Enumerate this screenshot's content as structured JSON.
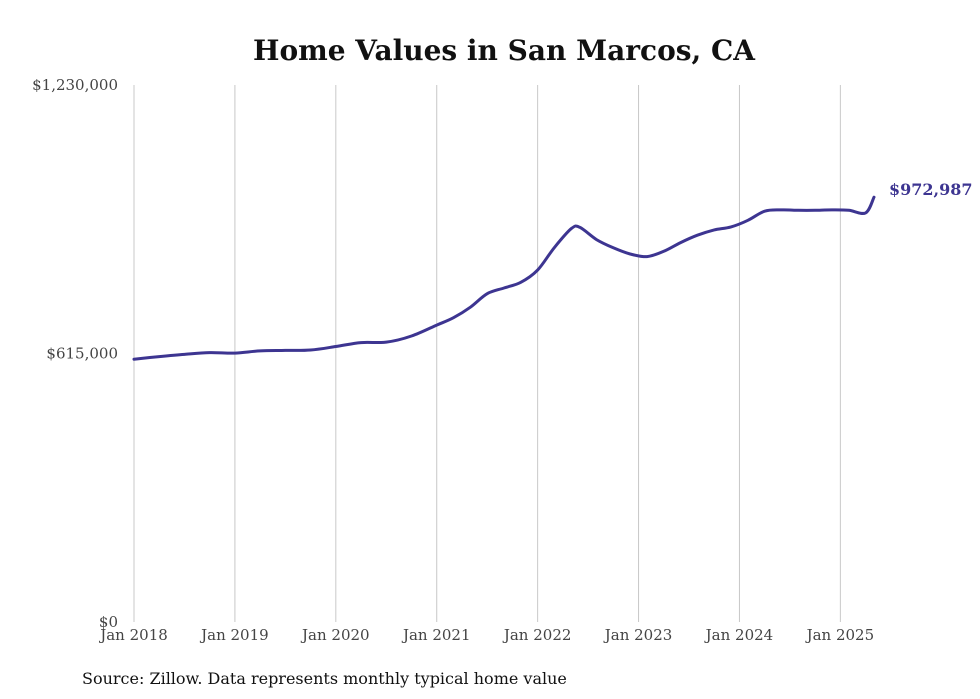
{
  "chart_data": {
    "type": "line",
    "title": "Home Values in San Marcos, CA",
    "xlabel": "",
    "ylabel": "",
    "ylim": [
      0,
      1230000
    ],
    "xlim": [
      "2018-01",
      "2025-05"
    ],
    "yticks": [
      {
        "value": 0,
        "label": "$0"
      },
      {
        "value": 615000,
        "label": "$615,000"
      },
      {
        "value": 1230000,
        "label": "$1,230,000"
      }
    ],
    "xticks": [
      {
        "date": "2018-01",
        "label": "Jan 2018"
      },
      {
        "date": "2019-01",
        "label": "Jan 2019"
      },
      {
        "date": "2020-01",
        "label": "Jan 2020"
      },
      {
        "date": "2021-01",
        "label": "Jan 2021"
      },
      {
        "date": "2022-01",
        "label": "Jan 2022"
      },
      {
        "date": "2023-01",
        "label": "Jan 2023"
      },
      {
        "date": "2024-01",
        "label": "Jan 2024"
      },
      {
        "date": "2025-01",
        "label": "Jan 2025"
      }
    ],
    "grid": "vertical",
    "legend": "none",
    "color": "#3d3591",
    "series": [
      {
        "x": [
          "2018-01",
          "2018-04",
          "2018-07",
          "2018-10",
          "2019-01",
          "2019-04",
          "2019-07",
          "2019-10",
          "2020-01",
          "2020-04",
          "2020-07",
          "2020-10",
          "2021-01",
          "2021-03",
          "2021-05",
          "2021-07",
          "2021-09",
          "2021-11",
          "2022-01",
          "2022-03",
          "2022-05",
          "2022-06",
          "2022-08",
          "2022-10",
          "2022-12",
          "2023-02",
          "2023-04",
          "2023-06",
          "2023-08",
          "2023-10",
          "2023-12",
          "2024-02",
          "2024-04",
          "2024-06",
          "2024-08",
          "2024-10",
          "2024-12",
          "2025-02",
          "2025-04",
          "2025-05"
        ],
        "values": [
          602000,
          608000,
          613000,
          617000,
          616000,
          621000,
          622000,
          623000,
          631000,
          640000,
          641000,
          655000,
          680000,
          697000,
          721000,
          752000,
          765000,
          778000,
          806000,
          858000,
          901000,
          904000,
          876000,
          857000,
          843000,
          837000,
          849000,
          869000,
          886000,
          898000,
          905000,
          920000,
          941000,
          944000,
          943000,
          943000,
          944000,
          943000,
          937000,
          972987
        ]
      }
    ],
    "end_label": "$972,987",
    "source": "Source: Zillow. Data represents monthly typical home value"
  }
}
